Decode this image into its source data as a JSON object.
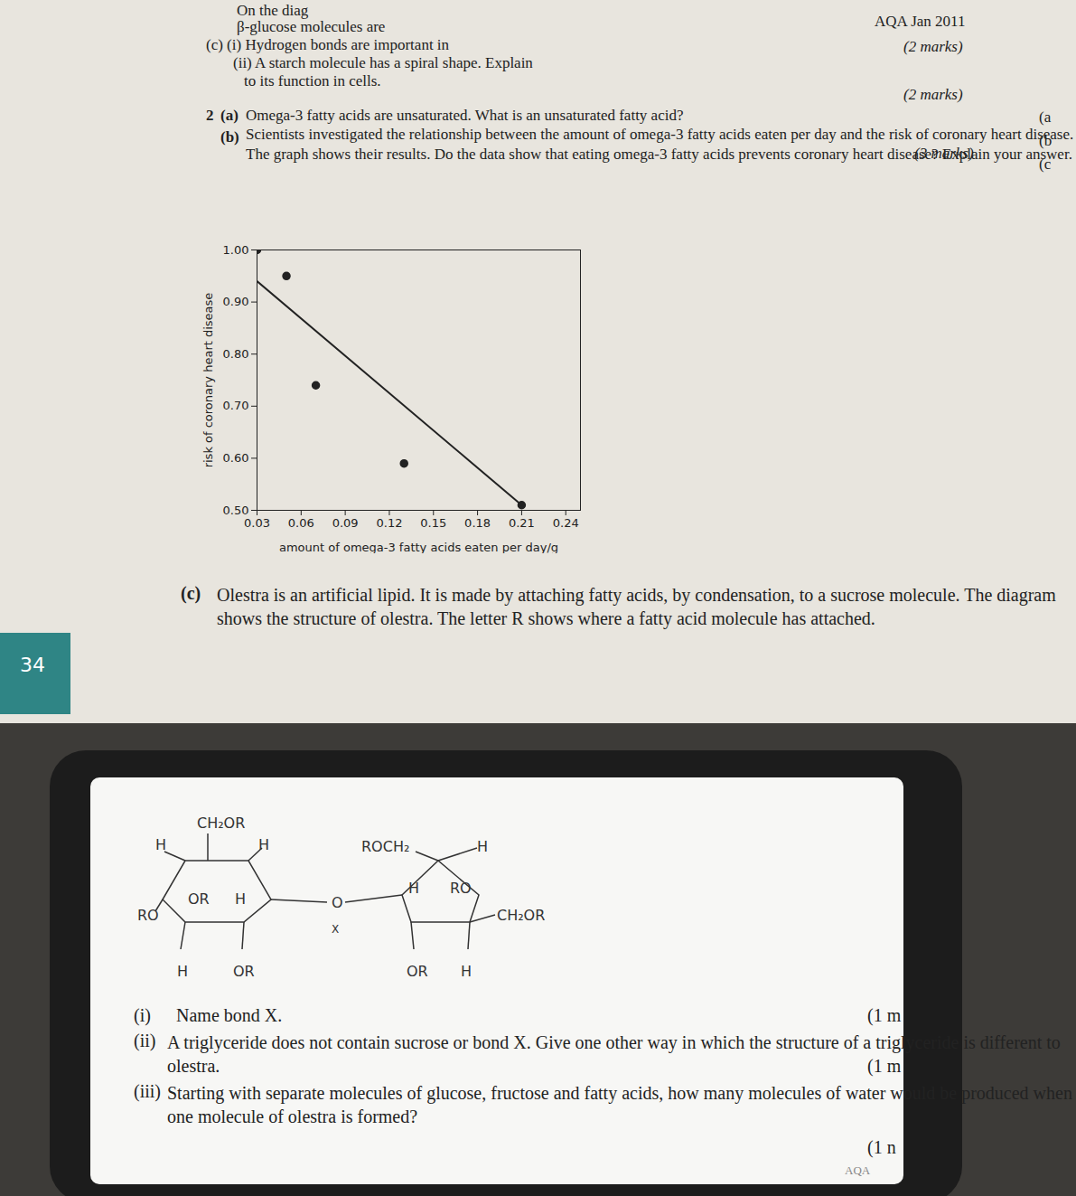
{
  "document": {
    "header": {
      "lines": [
        "On the diag",
        "β-glucose molecules are",
        "(c)  (i)  Hydrogen bonds are important in",
        "(ii)  A starch molecule has a spiral shape. Explain",
        "to its function in cells."
      ],
      "source": "AQA Jan 2011",
      "marks": "(2 marks)"
    },
    "question_2": {
      "number": "2",
      "a": {
        "label": "(a)",
        "text": "Omega-3 fatty acids are unsaturated. What is an unsaturated fatty acid?",
        "marks": "(2 marks)"
      },
      "b": {
        "label": "(b)",
        "text": "Scientists investigated the relationship between the amount of omega-3 fatty acids eaten per day and the risk of coronary heart disease. The graph shows their results. Do the data show that eating omega-3 fatty acids prevents coronary heart disease? Explain your answer.",
        "marks": "(3 marks)"
      },
      "c": {
        "label": "(c)",
        "text": "Olestra is an artificial lipid. It is made by attaching fatty acids, by condensation, to a sucrose molecule. The diagram shows the structure of olestra. The letter R shows where a fatty acid molecule has attached."
      }
    },
    "margin_labels": [
      "(a",
      "(b",
      "(c"
    ],
    "page_number": "34",
    "screen": {
      "diagram_labels": [
        "CH₂OR",
        "H",
        "H",
        "OR",
        "H",
        "RO",
        "H",
        "OR",
        "ROCH₂",
        "H",
        "H",
        "RO",
        "CH₂OR",
        "OR",
        "H",
        "O",
        "X"
      ],
      "questions": [
        {
          "label": "(i)",
          "text": "Name bond X.",
          "marks": "(1 m"
        },
        {
          "label": "(ii)",
          "text": "A triglyceride does not contain sucrose or bond X. Give one other way in which the structure of a triglyceride is different to olestra.",
          "marks": "(1 m"
        },
        {
          "label": "(iii)",
          "text": "Starting with separate molecules of glucose, fructose and fatty acids, how many molecules of water would be produced when one molecule of olestra is formed?",
          "marks": "(1 n"
        }
      ],
      "footer": "AQA"
    }
  },
  "chart_data": {
    "type": "scatter",
    "x_label": "amount of omega-3 fatty acids eaten per day/g",
    "y_label": "risk of coronary heart disease",
    "xlim": [
      0.03,
      0.25
    ],
    "xticks": [
      0.03,
      0.06,
      0.09,
      0.12,
      0.15,
      0.18,
      0.21,
      0.24
    ],
    "ylim": [
      0.5,
      1.0
    ],
    "yticks": [
      {
        "value": 0.5,
        "label": "0.50"
      },
      {
        "value": 0.6,
        "label": "0.60"
      },
      {
        "value": 0.7,
        "label": "0.70"
      },
      {
        "value": 0.8,
        "label": "0.80"
      },
      {
        "value": 0.9,
        "label": "0.90"
      },
      {
        "value": 1.0,
        "label": "1.00"
      }
    ],
    "grid": false,
    "series": [
      {
        "type": "scatter",
        "color": "#222222",
        "marker": "circle",
        "x": [
          0.03,
          0.05,
          0.07,
          0.13,
          0.21
        ],
        "values": [
          1.0,
          0.95,
          0.74,
          0.59,
          0.51
        ]
      },
      {
        "type": "line",
        "color": "#222222",
        "line_style": "solid",
        "x": [
          0.03,
          0.21
        ],
        "values": [
          0.94,
          0.51
        ]
      }
    ]
  }
}
